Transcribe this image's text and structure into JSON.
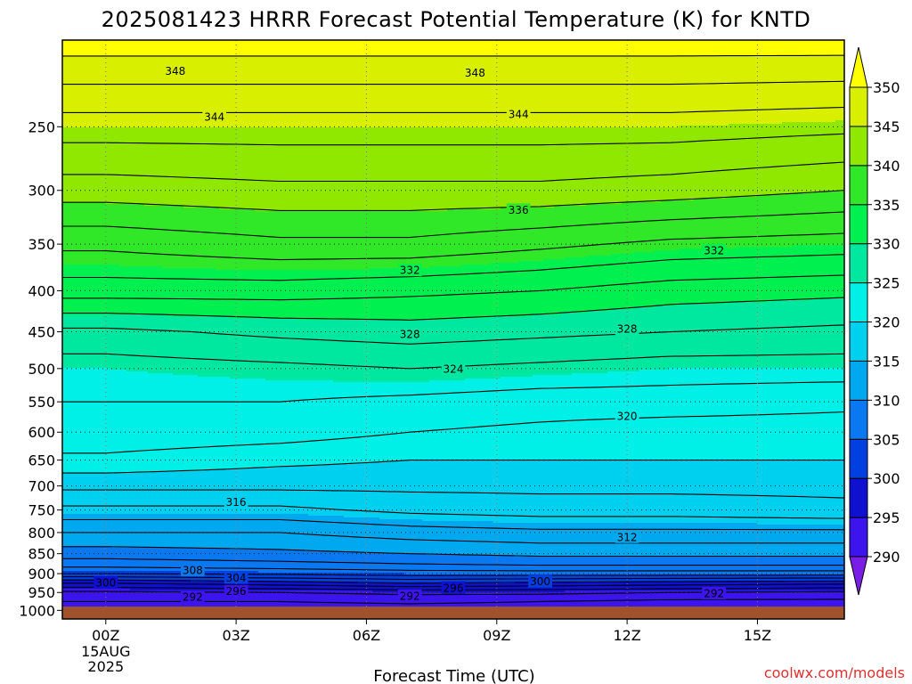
{
  "chart_data": {
    "type": "contour",
    "title": "2025081423 HRRR Forecast Potential Temperature (K) for KNTD",
    "xlabel": "Forecast Time (UTC)",
    "credit": "coolwx.com/models",
    "x_ticks": [
      "00Z",
      "03Z",
      "06Z",
      "09Z",
      "12Z",
      "15Z"
    ],
    "x_date": [
      "15AUG",
      "2025"
    ],
    "y_ticks": [
      250,
      300,
      350,
      400,
      450,
      500,
      550,
      600,
      650,
      700,
      750,
      800,
      850,
      900,
      950,
      1000
    ],
    "ylim": [
      1025,
      195
    ],
    "xlim_hours": [
      -1,
      17
    ],
    "pressure_levels": [
      1000,
      975,
      950,
      925,
      900,
      875,
      850,
      800,
      750,
      700,
      650,
      600,
      550,
      500,
      450,
      400,
      350,
      300,
      250,
      200
    ],
    "potential_temperature": [
      {
        "hour": 0,
        "theta": [
          291,
          292,
          293.5,
          298,
          304,
          307,
          309,
          312,
          315.5,
          318.5,
          321.5,
          323.5,
          324,
          325,
          327.5,
          333,
          336.5,
          341,
          345,
          350.5
        ]
      },
      {
        "hour": 4,
        "theta": [
          290.5,
          292,
          294,
          299,
          304.5,
          307.5,
          309.5,
          312,
          315.5,
          318.5,
          320.5,
          323,
          324,
          325.5,
          328.5,
          333,
          337.5,
          341.5,
          345,
          350.5
        ]
      },
      {
        "hour": 7,
        "theta": [
          290.5,
          292.5,
          294.5,
          300,
          305,
          308,
          310,
          313,
          316.5,
          318.5,
          320,
          322,
          323.5,
          326,
          329,
          332.5,
          337.5,
          341.5,
          345,
          350.5
        ]
      },
      {
        "hour": 10,
        "theta": [
          290.5,
          292,
          294.5,
          299.5,
          305,
          308.5,
          310.5,
          313.5,
          317,
          318.5,
          320,
          321.5,
          323,
          325.5,
          328.5,
          332,
          336.5,
          341.5,
          345,
          350.5
        ]
      },
      {
        "hour": 13,
        "theta": [
          290,
          291.5,
          294,
          299,
          305,
          308.5,
          310.5,
          313.5,
          317,
          318.5,
          320,
          321,
          323,
          325,
          328,
          331,
          335.5,
          341,
          345,
          350.5
        ]
      },
      {
        "hour": 17,
        "theta": [
          290,
          291.5,
          293.5,
          298.5,
          305,
          308.5,
          310.5,
          313.5,
          317.5,
          318.5,
          320,
          321,
          322.5,
          325,
          327.5,
          330.5,
          335,
          340,
          344.5,
          350.5
        ]
      }
    ],
    "contour_interval": 2,
    "contour_labels": [
      {
        "hour": 1.6,
        "p": 213,
        "v": "348"
      },
      {
        "hour": 8.5,
        "p": 214,
        "v": "348"
      },
      {
        "hour": 2.5,
        "p": 243,
        "v": "344"
      },
      {
        "hour": 9.5,
        "p": 241,
        "v": "344"
      },
      {
        "hour": 9.5,
        "p": 317,
        "v": "336"
      },
      {
        "hour": 14.0,
        "p": 356,
        "v": "332"
      },
      {
        "hour": 7.0,
        "p": 377,
        "v": "332"
      },
      {
        "hour": 7.0,
        "p": 453,
        "v": "328"
      },
      {
        "hour": 12.0,
        "p": 446,
        "v": "328"
      },
      {
        "hour": 8.0,
        "p": 500,
        "v": "324"
      },
      {
        "hour": 12.0,
        "p": 573,
        "v": "320"
      },
      {
        "hour": 3.0,
        "p": 733,
        "v": "316"
      },
      {
        "hour": 12.0,
        "p": 810,
        "v": "312"
      },
      {
        "hour": 2.0,
        "p": 891,
        "v": "308"
      },
      {
        "hour": 3.0,
        "p": 910,
        "v": "304"
      },
      {
        "hour": 0.0,
        "p": 923,
        "v": "300"
      },
      {
        "hour": 10.0,
        "p": 920,
        "v": "300"
      },
      {
        "hour": 3.0,
        "p": 946,
        "v": "296"
      },
      {
        "hour": 8.0,
        "p": 937,
        "v": "296"
      },
      {
        "hour": 2.0,
        "p": 962,
        "v": "292"
      },
      {
        "hour": 7.0,
        "p": 959,
        "v": "292"
      },
      {
        "hour": 14.0,
        "p": 952,
        "v": "292"
      }
    ],
    "colorbar": {
      "levels": [
        290,
        295,
        300,
        305,
        310,
        315,
        320,
        325,
        330,
        335,
        340,
        345,
        350
      ],
      "colors": [
        "#7a1ee6",
        "#3c14ee",
        "#1010d0",
        "#0040e0",
        "#0a78f0",
        "#00a8f0",
        "#00d0f0",
        "#00f0e8",
        "#00e8a0",
        "#00f050",
        "#30e828",
        "#90e800",
        "#d8f000",
        "#ffff00",
        "#ffd200"
      ]
    },
    "ground_color": "#a0522d"
  }
}
